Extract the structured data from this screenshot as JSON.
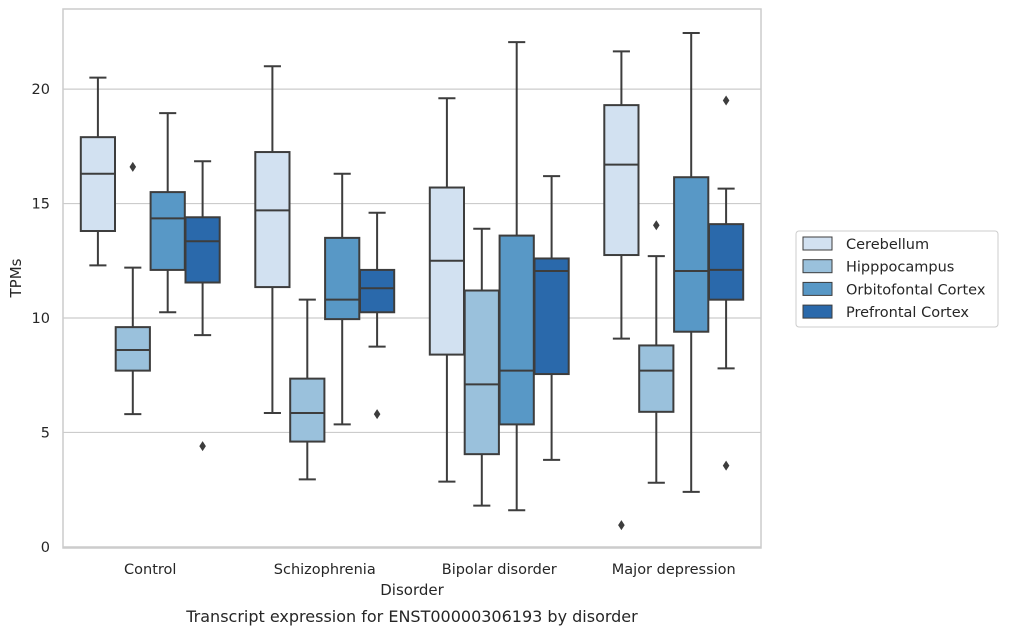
{
  "caption": "Transcript expression for ENST00000306193 by disorder",
  "chart_data": {
    "type": "boxplot",
    "title": "",
    "xlabel": "Disorder",
    "ylabel": "TPMs",
    "ylim": [
      -0.05,
      23.5
    ],
    "yticks": [
      0,
      5,
      10,
      15,
      20
    ],
    "grid": "horizontal",
    "legend_position": "right",
    "categories": [
      "Control",
      "Schizophrenia",
      "Bipolar disorder",
      "Major depression"
    ],
    "series": [
      {
        "name": "Cerebellum",
        "color": "#d2e1f1",
        "boxes": [
          {
            "whisker_low": 12.3,
            "q1": 13.8,
            "median": 16.3,
            "q3": 17.9,
            "whisker_high": 20.5,
            "outliers": []
          },
          {
            "whisker_low": 5.85,
            "q1": 11.35,
            "median": 14.7,
            "q3": 17.25,
            "whisker_high": 21.0,
            "outliers": []
          },
          {
            "whisker_low": 2.85,
            "q1": 8.4,
            "median": 12.5,
            "q3": 15.7,
            "whisker_high": 19.6,
            "outliers": []
          },
          {
            "whisker_low": 9.1,
            "q1": 12.75,
            "median": 16.7,
            "q3": 19.3,
            "whisker_high": 21.65,
            "outliers": [
              0.95
            ]
          }
        ]
      },
      {
        "name": "Hipppocampus",
        "color": "#9ac1dc",
        "boxes": [
          {
            "whisker_low": 5.8,
            "q1": 7.7,
            "median": 8.6,
            "q3": 9.6,
            "whisker_high": 12.2,
            "outliers": [
              16.6
            ]
          },
          {
            "whisker_low": 2.95,
            "q1": 4.6,
            "median": 5.85,
            "q3": 7.35,
            "whisker_high": 10.8,
            "outliers": []
          },
          {
            "whisker_low": 1.8,
            "q1": 4.05,
            "median": 7.1,
            "q3": 11.2,
            "whisker_high": 13.9,
            "outliers": []
          },
          {
            "whisker_low": 2.8,
            "q1": 5.9,
            "median": 7.7,
            "q3": 8.8,
            "whisker_high": 12.7,
            "outliers": [
              14.05
            ]
          }
        ]
      },
      {
        "name": "Orbitofontal Cortex",
        "color": "#5898c6",
        "boxes": [
          {
            "whisker_low": 10.25,
            "q1": 12.1,
            "median": 14.35,
            "q3": 15.5,
            "whisker_high": 18.95,
            "outliers": []
          },
          {
            "whisker_low": 5.35,
            "q1": 9.95,
            "median": 10.8,
            "q3": 13.5,
            "whisker_high": 16.3,
            "outliers": []
          },
          {
            "whisker_low": 1.6,
            "q1": 5.35,
            "median": 7.7,
            "q3": 13.6,
            "whisker_high": 22.05,
            "outliers": []
          },
          {
            "whisker_low": 2.4,
            "q1": 9.4,
            "median": 12.05,
            "q3": 16.15,
            "whisker_high": 22.45,
            "outliers": []
          }
        ]
      },
      {
        "name": "Prefrontal Cortex",
        "color": "#2a69ab",
        "boxes": [
          {
            "whisker_low": 9.25,
            "q1": 11.55,
            "median": 13.35,
            "q3": 14.4,
            "whisker_high": 16.85,
            "outliers": [
              4.4
            ]
          },
          {
            "whisker_low": 8.75,
            "q1": 10.25,
            "median": 11.3,
            "q3": 12.1,
            "whisker_high": 14.6,
            "outliers": [
              5.8
            ]
          },
          {
            "whisker_low": 3.8,
            "q1": 7.55,
            "median": 12.05,
            "q3": 12.6,
            "whisker_high": 16.2,
            "outliers": []
          },
          {
            "whisker_low": 7.8,
            "q1": 10.8,
            "median": 12.1,
            "q3": 14.1,
            "whisker_high": 15.65,
            "outliers": [
              3.55,
              19.5
            ]
          }
        ]
      }
    ]
  }
}
